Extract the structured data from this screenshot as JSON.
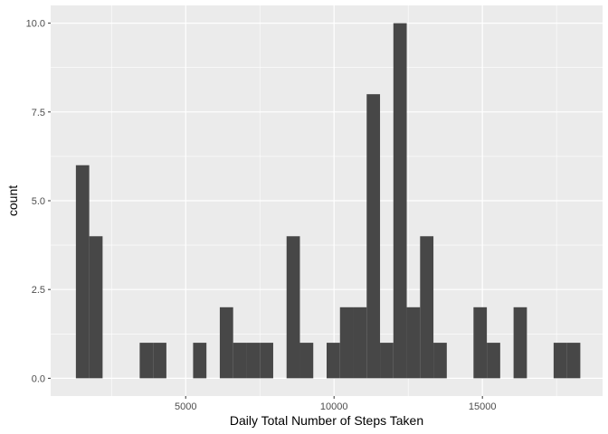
{
  "chart_data": {
    "type": "bar",
    "title": "",
    "xlabel": "Daily Total Number of Steps Taken",
    "ylabel": "count",
    "xlim": [
      450,
      19050
    ],
    "ylim": [
      -0.5,
      10.5
    ],
    "x_ticks": [
      5000,
      10000,
      15000
    ],
    "x_tick_labels": [
      "5000",
      "10000",
      "15000"
    ],
    "y_ticks": [
      0,
      2.5,
      5,
      7.5,
      10
    ],
    "y_tick_labels": [
      "0.0",
      "2.5",
      "5.0",
      "7.5",
      "10.0"
    ],
    "grid": true,
    "colors": {
      "panel": "#ebebeb",
      "grid_major": "#ffffff",
      "bar": "#474747"
    },
    "bins": [
      {
        "start": 1300,
        "end": 1750,
        "count": 6
      },
      {
        "start": 1750,
        "end": 2200,
        "count": 4
      },
      {
        "start": 3450,
        "end": 3900,
        "count": 1
      },
      {
        "start": 3900,
        "end": 4350,
        "count": 1
      },
      {
        "start": 5250,
        "end": 5700,
        "count": 1
      },
      {
        "start": 6150,
        "end": 6600,
        "count": 2
      },
      {
        "start": 6600,
        "end": 7050,
        "count": 1
      },
      {
        "start": 7050,
        "end": 7500,
        "count": 1
      },
      {
        "start": 7500,
        "end": 7950,
        "count": 1
      },
      {
        "start": 8400,
        "end": 8850,
        "count": 4
      },
      {
        "start": 8850,
        "end": 9300,
        "count": 1
      },
      {
        "start": 9750,
        "end": 10200,
        "count": 1
      },
      {
        "start": 10200,
        "end": 10650,
        "count": 2
      },
      {
        "start": 10650,
        "end": 11100,
        "count": 2
      },
      {
        "start": 11100,
        "end": 11550,
        "count": 8
      },
      {
        "start": 11550,
        "end": 12000,
        "count": 1
      },
      {
        "start": 12000,
        "end": 12450,
        "count": 10
      },
      {
        "start": 12450,
        "end": 12900,
        "count": 2
      },
      {
        "start": 12900,
        "end": 13350,
        "count": 4
      },
      {
        "start": 13350,
        "end": 13800,
        "count": 1
      },
      {
        "start": 14700,
        "end": 15150,
        "count": 2
      },
      {
        "start": 15150,
        "end": 15600,
        "count": 1
      },
      {
        "start": 16050,
        "end": 16500,
        "count": 2
      },
      {
        "start": 17400,
        "end": 17850,
        "count": 1
      },
      {
        "start": 17850,
        "end": 18300,
        "count": 1
      }
    ]
  }
}
